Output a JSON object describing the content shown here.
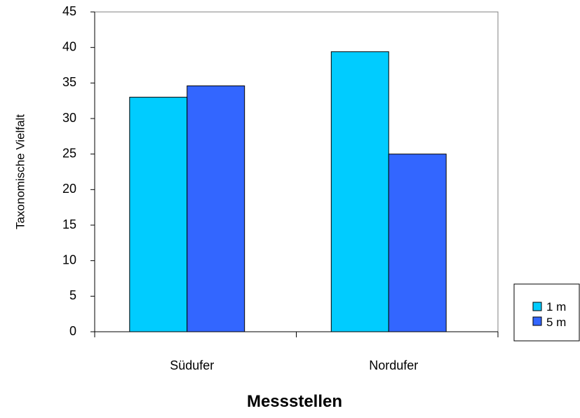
{
  "chart_data": {
    "type": "bar",
    "categories": [
      "Südufer",
      "Nordufer"
    ],
    "series": [
      {
        "name": "1 m",
        "values": [
          33,
          39.4
        ],
        "color": "#00ccff"
      },
      {
        "name": "5 m",
        "values": [
          34.6,
          25
        ],
        "color": "#3366ff"
      }
    ],
    "title": "",
    "xlabel": "Messstellen",
    "ylabel": "Taxonomische Vielfalt",
    "ylim": [
      0,
      45
    ],
    "yticks": [
      "0",
      "5",
      "10",
      "15",
      "20",
      "25",
      "30",
      "35",
      "40",
      "45"
    ],
    "grid": false,
    "legend": "right"
  }
}
